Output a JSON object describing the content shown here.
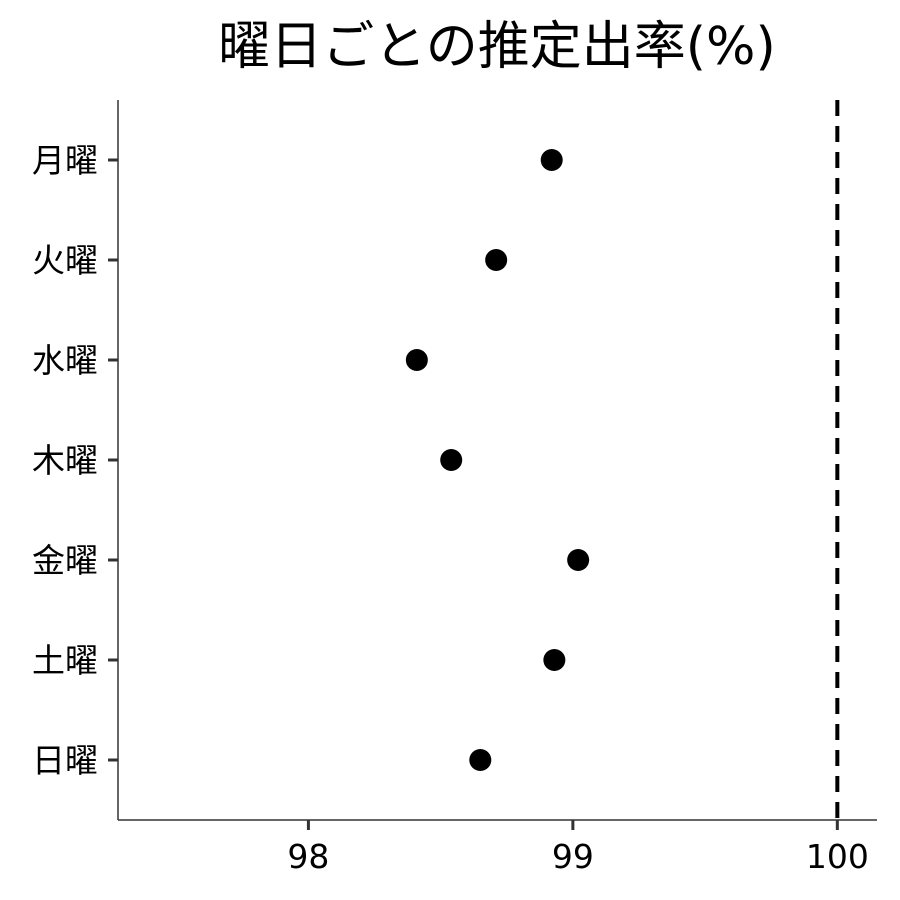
{
  "chart_data": {
    "type": "scatter",
    "title": "曜日ごとの推定出率(%)",
    "xlabel": "",
    "ylabel": "",
    "categories": [
      "月曜",
      "火曜",
      "水曜",
      "木曜",
      "金曜",
      "土曜",
      "日曜"
    ],
    "values": [
      98.92,
      98.71,
      98.41,
      98.54,
      99.02,
      98.93,
      98.65
    ],
    "xlim": [
      97.28,
      100.15
    ],
    "xticks": [
      98,
      99,
      100
    ],
    "xtick_labels": [
      "98",
      "99",
      "100"
    ],
    "reference_line": {
      "x": 100,
      "style": "dashed"
    },
    "grid": false,
    "legend": "none"
  }
}
